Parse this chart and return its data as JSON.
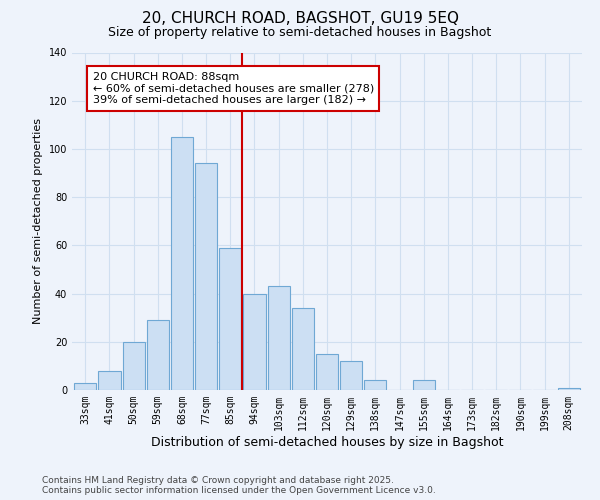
{
  "title1": "20, CHURCH ROAD, BAGSHOT, GU19 5EQ",
  "title2": "Size of property relative to semi-detached houses in Bagshot",
  "xlabel": "Distribution of semi-detached houses by size in Bagshot",
  "ylabel": "Number of semi-detached properties",
  "bar_labels": [
    "33sqm",
    "41sqm",
    "50sqm",
    "59sqm",
    "68sqm",
    "77sqm",
    "85sqm",
    "94sqm",
    "103sqm",
    "112sqm",
    "120sqm",
    "129sqm",
    "138sqm",
    "147sqm",
    "155sqm",
    "164sqm",
    "173sqm",
    "182sqm",
    "190sqm",
    "199sqm",
    "208sqm"
  ],
  "bar_values": [
    3,
    8,
    20,
    29,
    105,
    94,
    59,
    40,
    43,
    34,
    15,
    12,
    4,
    0,
    4,
    0,
    0,
    0,
    0,
    0,
    1
  ],
  "bar_color": "#ccdff3",
  "bar_edge_color": "#6fa8d4",
  "vline_color": "#cc0000",
  "property_line_label": "20 CHURCH ROAD: 88sqm",
  "annotation_smaller": "← 60% of semi-detached houses are smaller (278)",
  "annotation_larger": "39% of semi-detached houses are larger (182) →",
  "annotation_box_color": "#ffffff",
  "annotation_box_edge": "#cc0000",
  "ylim": [
    0,
    140
  ],
  "yticks": [
    0,
    20,
    40,
    60,
    80,
    100,
    120,
    140
  ],
  "footer1": "Contains HM Land Registry data © Crown copyright and database right 2025.",
  "footer2": "Contains public sector information licensed under the Open Government Licence v3.0.",
  "background_color": "#eef3fb",
  "grid_color": "#d0dff0",
  "title1_fontsize": 11,
  "title2_fontsize": 9,
  "xlabel_fontsize": 9,
  "ylabel_fontsize": 8,
  "tick_fontsize": 7,
  "annotation_fontsize": 8,
  "footer_fontsize": 6.5
}
